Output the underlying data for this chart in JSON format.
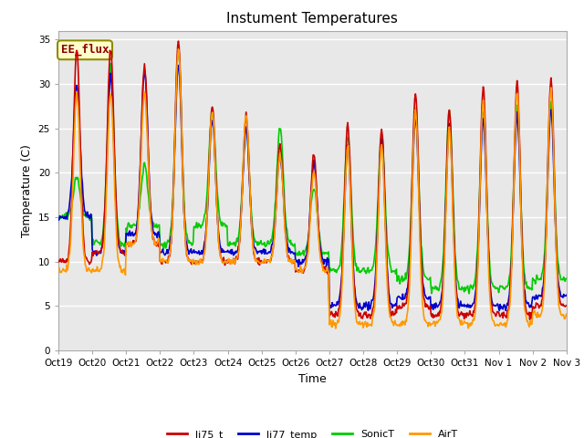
{
  "title": "Instument Temperatures",
  "xlabel": "Time",
  "ylabel": "Temperature (C)",
  "ylim": [
    0,
    36
  ],
  "xlim": [
    0,
    360
  ],
  "background_color": "#ffffff",
  "plot_bg_color": "#e8e8e8",
  "annotation_text": "EE_flux",
  "annotation_color": "#8b0000",
  "annotation_bg": "#ffffcc",
  "annotation_border": "#8b8b00",
  "lines": {
    "li75_t": {
      "color": "#cc0000",
      "lw": 1.2
    },
    "li77_temp": {
      "color": "#0000cc",
      "lw": 1.2
    },
    "SonicT": {
      "color": "#00cc00",
      "lw": 1.2
    },
    "AirT": {
      "color": "#ff9900",
      "lw": 1.2
    }
  },
  "legend_labels": [
    "li75_t",
    "li77_temp",
    "SonicT",
    "AirT"
  ],
  "xtick_labels": [
    "Oct 19",
    "Oct 20",
    "Oct 21",
    "Oct 22",
    "Oct 23",
    "Oct 24",
    "Oct 25",
    "Oct 26",
    "Oct 27",
    "Oct 28",
    "Oct 29",
    "Oct 30",
    "Oct 31",
    "Nov 1",
    "Nov 2",
    "Nov 3"
  ],
  "xtick_positions": [
    0,
    24,
    48,
    72,
    96,
    120,
    144,
    168,
    192,
    216,
    240,
    264,
    288,
    312,
    336,
    360
  ],
  "ytick_positions": [
    0,
    5,
    10,
    15,
    20,
    25,
    30,
    35
  ],
  "grid_color": "#ffffff",
  "title_fontsize": 11,
  "axis_fontsize": 9,
  "tick_fontsize": 7.5
}
